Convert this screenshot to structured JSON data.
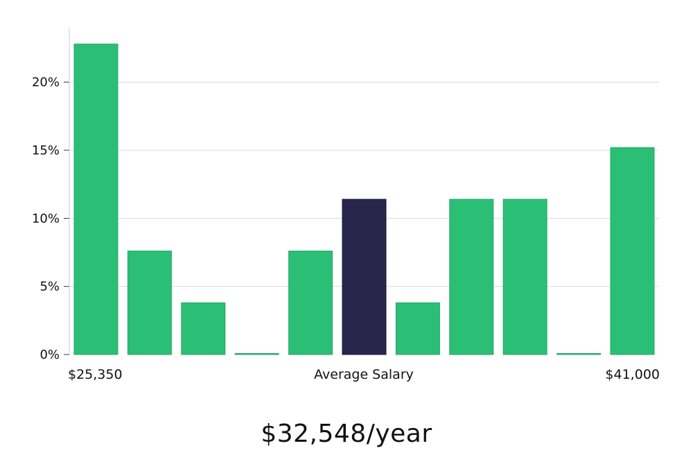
{
  "chart_data": {
    "type": "bar",
    "values": [
      22.8,
      7.6,
      3.8,
      0,
      7.6,
      11.4,
      3.8,
      11.4,
      11.4,
      0,
      15.2
    ],
    "highlight_index": 5,
    "x_labels": {
      "left": "$25,350",
      "center": "Average Salary",
      "right": "$41,000"
    },
    "y_ticks": [
      {
        "value": 0,
        "label": "0%"
      },
      {
        "value": 5,
        "label": "5%"
      },
      {
        "value": 10,
        "label": "10%"
      },
      {
        "value": 15,
        "label": "15%"
      },
      {
        "value": 20,
        "label": "20%"
      }
    ],
    "ylim": [
      0,
      24
    ],
    "grid": true,
    "colors": {
      "bar": "#2bbf76",
      "highlight": "#28264a",
      "grid": "#d9d9d9",
      "axis": "#cccccc"
    }
  },
  "summary": "$32,548/year"
}
